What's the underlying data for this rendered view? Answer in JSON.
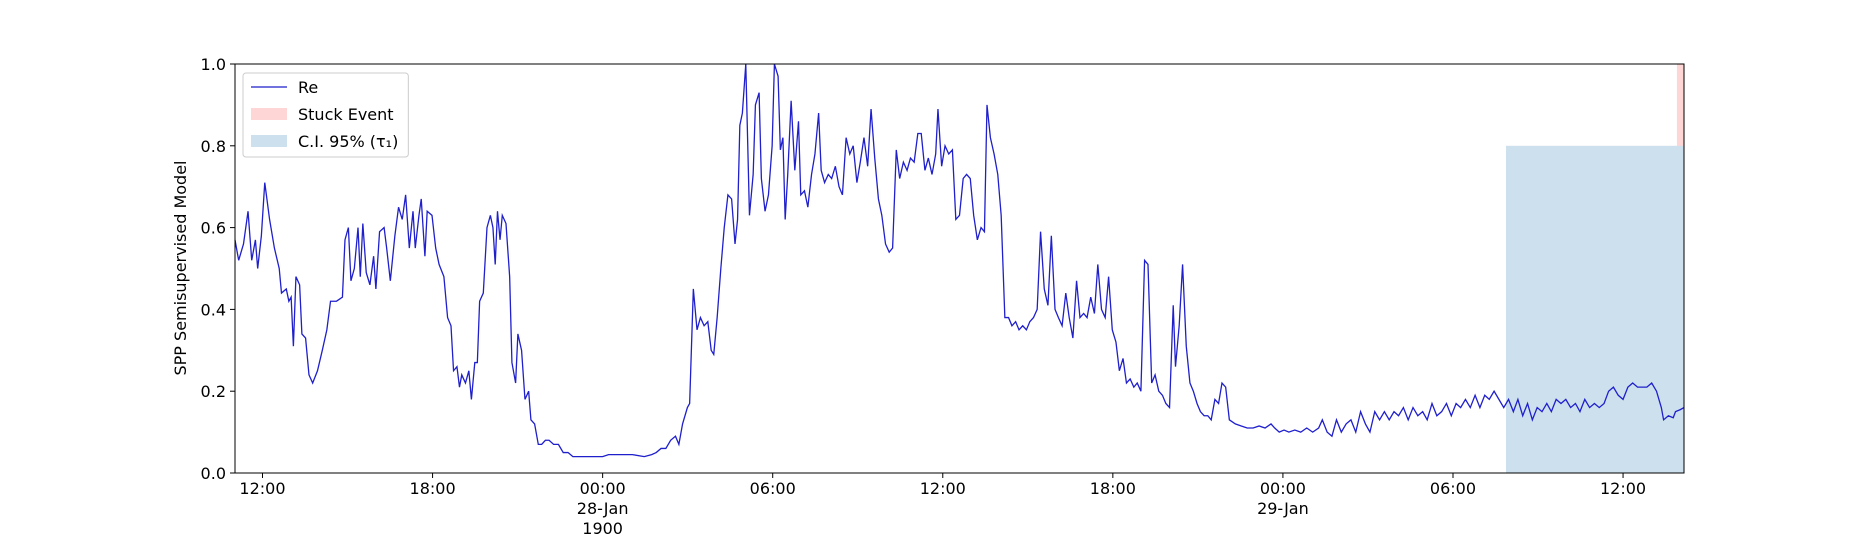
{
  "chart_data": {
    "type": "line",
    "ylabel": "SPP Semisupervised Model",
    "xlim": [
      -12.97,
      38.15
    ],
    "ylim": [
      0,
      1
    ],
    "xticks": [
      {
        "value": -12,
        "label": "12:00"
      },
      {
        "value": -6,
        "label": "18:00"
      },
      {
        "value": 0,
        "label": "00:00\n28-Jan\n1900"
      },
      {
        "value": 6,
        "label": "06:00"
      },
      {
        "value": 12,
        "label": "12:00"
      },
      {
        "value": 18,
        "label": "18:00"
      },
      {
        "value": 24,
        "label": "00:00\n29-Jan"
      },
      {
        "value": 30,
        "label": "06:00"
      },
      {
        "value": 36,
        "label": "12:00"
      }
    ],
    "yticks": [
      {
        "value": 0,
        "label": "0.0"
      },
      0.2,
      0.4,
      0.6,
      0.8,
      {
        "value": 1,
        "label": "1.0"
      }
    ],
    "legend": "upper left",
    "spans": [
      {
        "name": "Stuck Event",
        "color": "#ffd6d6",
        "x": [
          37.9,
          38.15
        ],
        "y": [
          0,
          1
        ]
      },
      {
        "name": "C.I. 95% (τ₁)",
        "color": "#cde0ee",
        "x": [
          31.87,
          38.15
        ],
        "y": [
          0,
          0.8
        ]
      }
    ],
    "x": [
      -12.97,
      -12.84,
      -12.67,
      -12.51,
      -12.38,
      -12.25,
      -12.17,
      -12.04,
      -11.92,
      -11.75,
      -11.58,
      -11.41,
      -11.33,
      -11.16,
      -11.07,
      -10.99,
      -10.91,
      -10.82,
      -10.69,
      -10.61,
      -10.48,
      -10.36,
      -10.23,
      -10.06,
      -9.89,
      -9.73,
      -9.6,
      -9.39,
      -9.18,
      -9.09,
      -8.97,
      -8.88,
      -8.76,
      -8.63,
      -8.55,
      -8.46,
      -8.34,
      -8.21,
      -8.08,
      -8,
      -7.87,
      -7.71,
      -7.62,
      -7.49,
      -7.33,
      -7.2,
      -7.07,
      -6.95,
      -6.82,
      -6.69,
      -6.61,
      -6.48,
      -6.4,
      -6.27,
      -6.19,
      -6.02,
      -5.89,
      -5.77,
      -5.6,
      -5.47,
      -5.35,
      -5.26,
      -5.14,
      -5.05,
      -4.97,
      -4.84,
      -4.72,
      -4.63,
      -4.51,
      -4.42,
      -4.34,
      -4.21,
      -4.08,
      -3.96,
      -3.87,
      -3.79,
      -3.71,
      -3.62,
      -3.54,
      -3.41,
      -3.28,
      -3.2,
      -3.07,
      -2.99,
      -2.86,
      -2.74,
      -2.61,
      -2.53,
      -2.4,
      -2.27,
      -2.15,
      -2.02,
      -1.89,
      -1.73,
      -1.56,
      -1.39,
      -1.22,
      -1.05,
      -0.63,
      -0.21,
      0,
      0.21,
      0.63,
      1.05,
      1.47,
      1.73,
      1.89,
      2.06,
      2.23,
      2.4,
      2.57,
      2.69,
      2.82,
      2.99,
      3.07,
      3.2,
      3.33,
      3.45,
      3.58,
      3.71,
      3.83,
      3.92,
      4.04,
      4.17,
      4.29,
      4.42,
      4.55,
      4.67,
      4.76,
      4.84,
      4.93,
      5.05,
      5.18,
      5.31,
      5.39,
      5.52,
      5.6,
      5.73,
      5.85,
      5.98,
      6.06,
      6.19,
      6.27,
      6.36,
      6.44,
      6.53,
      6.65,
      6.78,
      6.91,
      6.99,
      7.12,
      7.24,
      7.37,
      7.49,
      7.62,
      7.71,
      7.83,
      7.96,
      8.08,
      8.21,
      8.34,
      8.46,
      8.59,
      8.72,
      8.84,
      8.97,
      9.09,
      9.22,
      9.35,
      9.47,
      9.6,
      9.73,
      9.85,
      9.98,
      10.11,
      10.23,
      10.36,
      10.48,
      10.61,
      10.74,
      10.86,
      10.99,
      11.12,
      11.24,
      11.37,
      11.49,
      11.62,
      11.75,
      11.83,
      11.96,
      12.08,
      12.21,
      12.34,
      12.46,
      12.59,
      12.72,
      12.84,
      12.97,
      13.09,
      13.22,
      13.35,
      13.47,
      13.56,
      13.68,
      13.81,
      13.94,
      14.06,
      14.19,
      14.32,
      14.44,
      14.57,
      14.69,
      14.82,
      14.95,
      15.07,
      15.2,
      15.33,
      15.45,
      15.58,
      15.71,
      15.83,
      15.96,
      16.08,
      16.21,
      16.34,
      16.46,
      16.59,
      16.72,
      16.84,
      16.97,
      17.09,
      17.22,
      17.35,
      17.47,
      17.6,
      17.73,
      17.85,
      17.98,
      18.11,
      18.23,
      18.36,
      18.48,
      18.61,
      18.74,
      18.86,
      18.99,
      19.12,
      19.24,
      19.37,
      19.49,
      19.62,
      19.75,
      19.87,
      20,
      20.13,
      20.21,
      20.34,
      20.46,
      20.59,
      20.72,
      20.84,
      20.97,
      21.09,
      21.22,
      21.35,
      21.47,
      21.6,
      21.73,
      21.85,
      21.98,
      22.11,
      22.32,
      22.53,
      22.74,
      22.95,
      23.16,
      23.37,
      23.58,
      23.71,
      23.87,
      24.04,
      24.21,
      24.42,
      24.63,
      24.84,
      25.05,
      25.26,
      25.39,
      25.56,
      25.73,
      25.89,
      26.06,
      26.23,
      26.4,
      26.57,
      26.74,
      26.91,
      27.07,
      27.24,
      27.41,
      27.58,
      27.75,
      27.92,
      28.08,
      28.25,
      28.42,
      28.59,
      28.76,
      28.93,
      29.09,
      29.26,
      29.43,
      29.6,
      29.77,
      29.94,
      30.11,
      30.27,
      30.44,
      30.61,
      30.78,
      30.95,
      31.12,
      31.28,
      31.45,
      31.62,
      31.79,
      31.96,
      32.13,
      32.29,
      32.46,
      32.63,
      32.8,
      32.97,
      33.14,
      33.31,
      33.47,
      33.64,
      33.81,
      33.98,
      34.15,
      34.32,
      34.48,
      34.65,
      34.82,
      34.99,
      35.16,
      35.33,
      35.49,
      35.66,
      35.83,
      36,
      36.17,
      36.34,
      36.51,
      36.67,
      36.84,
      37.01,
      37.18,
      37.35,
      37.43,
      37.6,
      37.77,
      37.85,
      38.02,
      38.15
    ],
    "series": [
      {
        "name": "Re",
        "color": "#1f1fcc",
        "values": [
          0.57,
          0.52,
          0.56,
          0.64,
          0.52,
          0.57,
          0.5,
          0.58,
          0.71,
          0.62,
          0.55,
          0.5,
          0.44,
          0.45,
          0.42,
          0.43,
          0.31,
          0.48,
          0.46,
          0.34,
          0.33,
          0.24,
          0.22,
          0.25,
          0.3,
          0.35,
          0.42,
          0.42,
          0.43,
          0.57,
          0.6,
          0.47,
          0.5,
          0.6,
          0.48,
          0.61,
          0.49,
          0.46,
          0.53,
          0.45,
          0.59,
          0.6,
          0.55,
          0.47,
          0.58,
          0.65,
          0.62,
          0.68,
          0.55,
          0.64,
          0.55,
          0.63,
          0.67,
          0.53,
          0.64,
          0.63,
          0.55,
          0.51,
          0.48,
          0.38,
          0.36,
          0.25,
          0.26,
          0.21,
          0.24,
          0.22,
          0.25,
          0.18,
          0.27,
          0.27,
          0.42,
          0.44,
          0.6,
          0.63,
          0.6,
          0.51,
          0.64,
          0.57,
          0.63,
          0.61,
          0.48,
          0.27,
          0.22,
          0.34,
          0.3,
          0.18,
          0.2,
          0.13,
          0.12,
          0.07,
          0.07,
          0.08,
          0.08,
          0.07,
          0.07,
          0.05,
          0.05,
          0.04,
          0.04,
          0.04,
          0.04,
          0.045,
          0.045,
          0.045,
          0.04,
          0.045,
          0.05,
          0.06,
          0.06,
          0.08,
          0.09,
          0.07,
          0.12,
          0.16,
          0.17,
          0.45,
          0.35,
          0.38,
          0.36,
          0.37,
          0.3,
          0.29,
          0.38,
          0.5,
          0.6,
          0.68,
          0.67,
          0.56,
          0.62,
          0.85,
          0.88,
          1.0,
          0.63,
          0.73,
          0.9,
          0.93,
          0.72,
          0.64,
          0.68,
          0.8,
          1.0,
          0.97,
          0.79,
          0.82,
          0.62,
          0.73,
          0.91,
          0.74,
          0.86,
          0.68,
          0.69,
          0.65,
          0.73,
          0.78,
          0.88,
          0.74,
          0.71,
          0.73,
          0.72,
          0.75,
          0.7,
          0.68,
          0.82,
          0.78,
          0.8,
          0.71,
          0.76,
          0.82,
          0.75,
          0.89,
          0.77,
          0.67,
          0.63,
          0.56,
          0.54,
          0.55,
          0.79,
          0.72,
          0.76,
          0.74,
          0.77,
          0.76,
          0.83,
          0.83,
          0.74,
          0.77,
          0.73,
          0.78,
          0.89,
          0.75,
          0.8,
          0.78,
          0.79,
          0.62,
          0.63,
          0.72,
          0.73,
          0.72,
          0.63,
          0.57,
          0.6,
          0.59,
          0.9,
          0.82,
          0.78,
          0.73,
          0.63,
          0.38,
          0.38,
          0.36,
          0.37,
          0.35,
          0.36,
          0.35,
          0.37,
          0.38,
          0.4,
          0.59,
          0.45,
          0.41,
          0.58,
          0.4,
          0.38,
          0.36,
          0.44,
          0.38,
          0.33,
          0.47,
          0.38,
          0.39,
          0.38,
          0.43,
          0.39,
          0.51,
          0.4,
          0.38,
          0.48,
          0.35,
          0.32,
          0.25,
          0.28,
          0.22,
          0.23,
          0.21,
          0.22,
          0.2,
          0.52,
          0.51,
          0.22,
          0.24,
          0.2,
          0.19,
          0.17,
          0.16,
          0.41,
          0.26,
          0.36,
          0.51,
          0.31,
          0.22,
          0.2,
          0.17,
          0.15,
          0.14,
          0.14,
          0.13,
          0.18,
          0.17,
          0.22,
          0.21,
          0.13,
          0.12,
          0.115,
          0.11,
          0.11,
          0.115,
          0.11,
          0.12,
          0.11,
          0.1,
          0.105,
          0.1,
          0.105,
          0.1,
          0.11,
          0.1,
          0.11,
          0.13,
          0.1,
          0.09,
          0.13,
          0.1,
          0.12,
          0.13,
          0.1,
          0.15,
          0.12,
          0.1,
          0.15,
          0.13,
          0.15,
          0.13,
          0.15,
          0.14,
          0.16,
          0.13,
          0.16,
          0.14,
          0.15,
          0.13,
          0.17,
          0.14,
          0.15,
          0.17,
          0.14,
          0.17,
          0.16,
          0.18,
          0.16,
          0.19,
          0.16,
          0.19,
          0.18,
          0.2,
          0.18,
          0.16,
          0.18,
          0.15,
          0.18,
          0.14,
          0.17,
          0.13,
          0.16,
          0.15,
          0.17,
          0.15,
          0.18,
          0.17,
          0.18,
          0.16,
          0.17,
          0.15,
          0.18,
          0.16,
          0.17,
          0.16,
          0.17,
          0.2,
          0.21,
          0.19,
          0.18,
          0.21,
          0.22,
          0.21,
          0.21,
          0.21,
          0.22,
          0.2,
          0.16,
          0.13,
          0.14,
          0.135,
          0.15,
          0.155,
          0.16
        ]
      }
    ]
  }
}
